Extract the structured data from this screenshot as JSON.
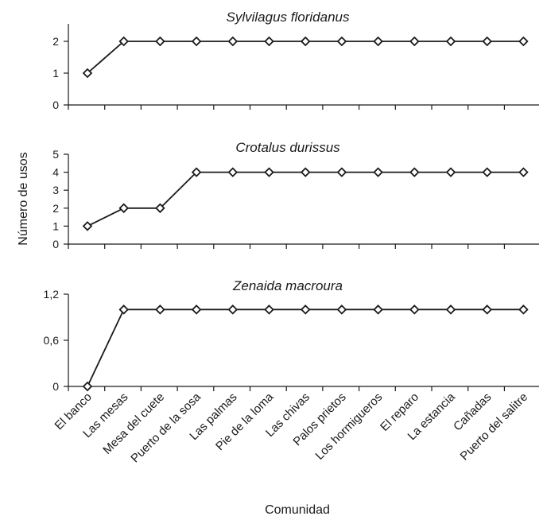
{
  "chart_data": [
    {
      "type": "line",
      "title": "Sylvilagus floridanus",
      "categories": [
        "El banco",
        "Las mesas",
        "Mesa del cuete",
        "Puerto de la sosa",
        "Las palmas",
        "Pie de la loma",
        "Las chivas",
        "Palos prietos",
        "Los hormigueros",
        "El reparo",
        "La estancia",
        "Cañadas",
        "Puerto del salitre"
      ],
      "values": [
        1,
        2,
        2,
        2,
        2,
        2,
        2,
        2,
        2,
        2,
        2,
        2,
        2
      ],
      "ylim": [
        0,
        2.5
      ],
      "yticks": [
        "0",
        "1",
        "2"
      ],
      "ytick_values": [
        0,
        1,
        2
      ]
    },
    {
      "type": "line",
      "title": "Crotalus durissus",
      "categories": [
        "El banco",
        "Las mesas",
        "Mesa del cuete",
        "Puerto de la sosa",
        "Las palmas",
        "Pie de la loma",
        "Las chivas",
        "Palos prietos",
        "Los hormigueros",
        "El reparo",
        "La estancia",
        "Cañadas",
        "Puerto del salitre"
      ],
      "values": [
        1,
        2,
        2,
        4,
        4,
        4,
        4,
        4,
        4,
        4,
        4,
        4,
        4
      ],
      "ylim": [
        0,
        5
      ],
      "yticks": [
        "0",
        "1",
        "2",
        "3",
        "4",
        "5"
      ],
      "ytick_values": [
        0,
        1,
        2,
        3,
        4,
        5
      ]
    },
    {
      "type": "line",
      "title": "Zenaida macroura",
      "categories": [
        "El banco",
        "Las mesas",
        "Mesa del cuete",
        "Puerto de la sosa",
        "Las palmas",
        "Pie de la loma",
        "Las chivas",
        "Palos prietos",
        "Los hormigueros",
        "El reparo",
        "La estancia",
        "Cañadas",
        "Puerto del salitre"
      ],
      "values": [
        0,
        1,
        1,
        1,
        1,
        1,
        1,
        1,
        1,
        1,
        1,
        1,
        1
      ],
      "ylim": [
        0,
        1.2
      ],
      "yticks": [
        "0",
        "0,6",
        "1,2"
      ],
      "ytick_values": [
        0,
        0.6,
        1.2
      ]
    }
  ],
  "ylabel": "Número de usos",
  "xlabel": "Comunidad",
  "colors": {
    "line": "#1a1a1a",
    "marker_fill": "#ffffff"
  }
}
